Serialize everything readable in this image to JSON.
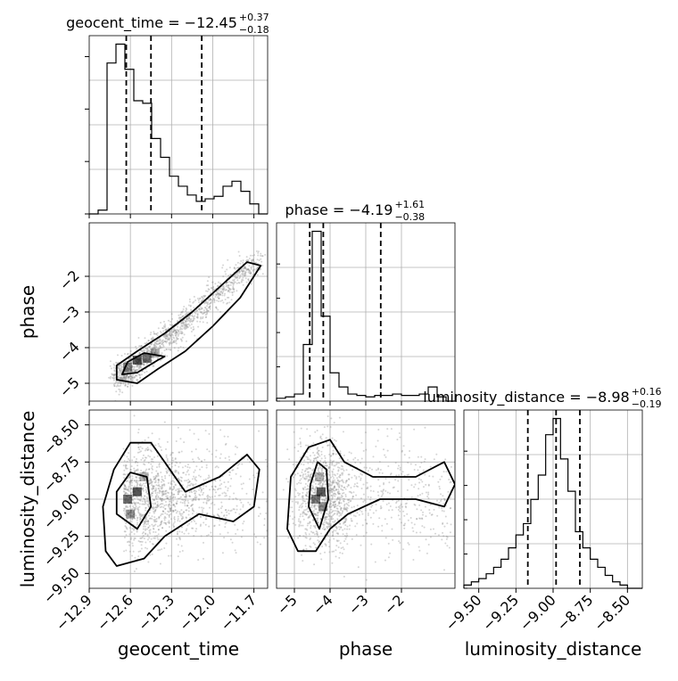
{
  "chart_data": {
    "type": "corner",
    "parameters": [
      "geocent_time",
      "phase",
      "luminosity_distance"
    ],
    "axis_labels": {
      "x": [
        "geocent_time",
        "phase",
        "luminosity_distance"
      ],
      "y": [
        "phase",
        "luminosity_distance"
      ]
    },
    "titles": [
      {
        "param": "geocent_time",
        "prefix": "geocent_time = ",
        "median": "−12.45",
        "plus": "+0.37",
        "minus": "−0.18"
      },
      {
        "param": "phase",
        "prefix": "phase = ",
        "median": "−4.19",
        "plus": "+1.61",
        "minus": "−0.38"
      },
      {
        "param": "luminosity_distance",
        "prefix": "luminosity_distance = ",
        "median": "−8.98",
        "plus": "+0.16",
        "minus": "−0.19"
      }
    ],
    "ranges": {
      "geocent_time": [
        -12.9,
        -11.6
      ],
      "phase": [
        -5.5,
        -0.5
      ],
      "luminosity_distance": [
        -9.6,
        -8.4
      ]
    },
    "ticks": {
      "geocent_time": {
        "values": [
          -12.9,
          -12.6,
          -12.3,
          -12.0,
          -11.7
        ],
        "labels": [
          "−12.9",
          "−12.6",
          "−12.3",
          "−12.0",
          "−11.7"
        ]
      },
      "phase_x": {
        "values": [
          -5,
          -4,
          -3,
          -2
        ],
        "labels": [
          "−5",
          "−4",
          "−3",
          "−2"
        ]
      },
      "phase_y": {
        "values": [
          -5,
          -4,
          -3,
          -2
        ],
        "labels": [
          "−5",
          "−4",
          "−3",
          "−2"
        ]
      },
      "luminosity_distance_x": {
        "values": [
          -9.5,
          -9.25,
          -9.0,
          -8.75,
          -8.5
        ],
        "labels": [
          "−9.50",
          "−9.25",
          "−9.00",
          "−8.75",
          "−8.50"
        ]
      },
      "luminosity_distance_y": {
        "values": [
          -9.5,
          -9.25,
          -9.0,
          -8.75,
          -8.5
        ],
        "labels": [
          "−9.50",
          "−9.25",
          "−9.00",
          "−8.75",
          "−8.50"
        ]
      }
    },
    "histograms": {
      "geocent_time": {
        "bin_edges": [
          -12.9,
          -12.835,
          -12.77,
          -12.705,
          -12.64,
          -12.575,
          -12.51,
          -12.445,
          -12.38,
          -12.315,
          -12.25,
          -12.185,
          -12.12,
          -12.055,
          -11.99,
          -11.925,
          -11.86,
          -11.795,
          -11.73,
          -11.665,
          -11.6
        ],
        "counts": [
          0,
          3,
          120,
          135,
          115,
          90,
          88,
          60,
          45,
          30,
          22,
          15,
          10,
          12,
          14,
          22,
          26,
          18,
          8,
          0
        ],
        "quantiles": [
          -12.63,
          -12.45,
          -12.08
        ]
      },
      "phase": {
        "bin_edges": [
          -5.5,
          -5.25,
          -5.0,
          -4.75,
          -4.5,
          -4.25,
          -4.0,
          -3.75,
          -3.5,
          -3.25,
          -3.0,
          -2.75,
          -2.5,
          -2.25,
          -2.0,
          -1.75,
          -1.5,
          -1.25,
          -1.0,
          -0.75,
          -0.5
        ],
        "counts": [
          2,
          3,
          5,
          40,
          120,
          60,
          20,
          10,
          5,
          4,
          3,
          4,
          4,
          5,
          4,
          4,
          5,
          10,
          3,
          0
        ],
        "quantiles": [
          -4.57,
          -4.19,
          -2.58
        ]
      },
      "luminosity_distance": {
        "bin_edges": [
          -9.6,
          -9.55,
          -9.5,
          -9.45,
          -9.4,
          -9.35,
          -9.3,
          -9.25,
          -9.2,
          -9.15,
          -9.1,
          -9.05,
          -9.0,
          -8.95,
          -8.9,
          -8.85,
          -8.8,
          -8.75,
          -8.7,
          -8.65,
          -8.6,
          -8.55,
          -8.5,
          -8.45,
          -8.4
        ],
        "counts": [
          2,
          4,
          6,
          9,
          13,
          18,
          25,
          33,
          40,
          55,
          70,
          95,
          105,
          80,
          60,
          35,
          25,
          18,
          13,
          8,
          4,
          2,
          0,
          0
        ],
        "quantiles": [
          -9.17,
          -8.98,
          -8.82
        ]
      }
    },
    "joint_panels": [
      {
        "x": "geocent_time",
        "y": "phase",
        "trend": "positive linear",
        "density_peak": [
          -12.6,
          -4.4
        ],
        "contours": [
          [
            [
              -12.7,
              -4.9
            ],
            [
              -12.55,
              -5.0
            ],
            [
              -12.4,
              -4.6
            ],
            [
              -12.2,
              -4.1
            ],
            [
              -12.0,
              -3.4
            ],
            [
              -11.8,
              -2.6
            ],
            [
              -11.65,
              -1.7
            ],
            [
              -11.75,
              -1.6
            ],
            [
              -11.95,
              -2.3
            ],
            [
              -12.15,
              -3.0
            ],
            [
              -12.35,
              -3.6
            ],
            [
              -12.55,
              -4.1
            ],
            [
              -12.7,
              -4.5
            ]
          ],
          [
            [
              -12.66,
              -4.75
            ],
            [
              -12.55,
              -4.7
            ],
            [
              -12.4,
              -4.35
            ],
            [
              -12.35,
              -4.25
            ],
            [
              -12.5,
              -4.15
            ],
            [
              -12.62,
              -4.4
            ]
          ]
        ]
      },
      {
        "x": "geocent_time",
        "y": "luminosity_distance",
        "trend": "weak correlation",
        "density_peak": [
          -12.55,
          -8.98
        ],
        "contours": [
          [
            [
              -12.78,
              -9.35
            ],
            [
              -12.7,
              -9.45
            ],
            [
              -12.5,
              -9.4
            ],
            [
              -12.35,
              -9.25
            ],
            [
              -12.1,
              -9.1
            ],
            [
              -11.85,
              -9.15
            ],
            [
              -11.7,
              -9.05
            ],
            [
              -11.66,
              -8.8
            ],
            [
              -11.75,
              -8.7
            ],
            [
              -11.95,
              -8.85
            ],
            [
              -12.2,
              -8.95
            ],
            [
              -12.35,
              -8.75
            ],
            [
              -12.45,
              -8.62
            ],
            [
              -12.6,
              -8.62
            ],
            [
              -12.72,
              -8.8
            ],
            [
              -12.8,
              -9.05
            ]
          ],
          [
            [
              -12.7,
              -9.1
            ],
            [
              -12.55,
              -9.2
            ],
            [
              -12.45,
              -9.05
            ],
            [
              -12.48,
              -8.85
            ],
            [
              -12.6,
              -8.82
            ],
            [
              -12.7,
              -8.95
            ]
          ]
        ]
      },
      {
        "x": "phase",
        "y": "luminosity_distance",
        "trend": "weak correlation",
        "density_peak": [
          -4.2,
          -8.98
        ],
        "contours": [
          [
            [
              -5.2,
              -9.2
            ],
            [
              -4.9,
              -9.35
            ],
            [
              -4.4,
              -9.35
            ],
            [
              -4.0,
              -9.2
            ],
            [
              -3.5,
              -9.1
            ],
            [
              -2.6,
              -9.0
            ],
            [
              -1.6,
              -9.0
            ],
            [
              -0.8,
              -9.05
            ],
            [
              -0.5,
              -8.9
            ],
            [
              -0.8,
              -8.75
            ],
            [
              -1.6,
              -8.85
            ],
            [
              -2.8,
              -8.85
            ],
            [
              -3.6,
              -8.75
            ],
            [
              -4.0,
              -8.6
            ],
            [
              -4.6,
              -8.65
            ],
            [
              -5.1,
              -8.85
            ]
          ],
          [
            [
              -4.6,
              -9.05
            ],
            [
              -4.3,
              -9.2
            ],
            [
              -4.05,
              -9.0
            ],
            [
              -4.1,
              -8.8
            ],
            [
              -4.35,
              -8.75
            ],
            [
              -4.55,
              -8.9
            ]
          ]
        ]
      }
    ]
  }
}
